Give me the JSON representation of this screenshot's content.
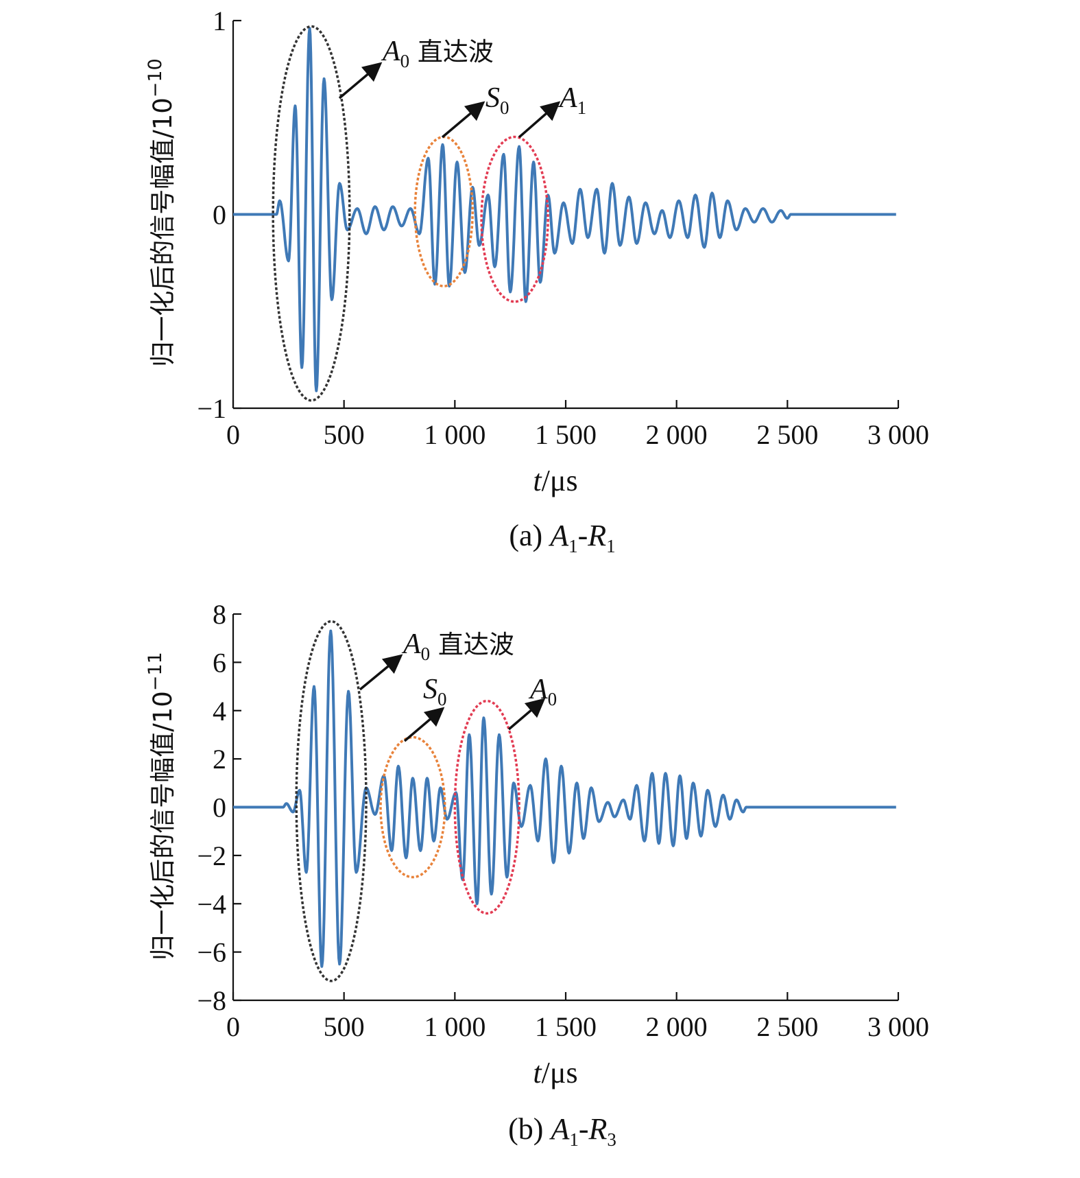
{
  "colors": {
    "signal": "#3f79b6",
    "axis": "#111111",
    "ellipse_a0_direct": "#333333",
    "ellipse_s0": "#e8823a",
    "ellipse_mode": "#e23b52"
  },
  "chart_data": [
    {
      "type": "line",
      "caption": "(a) A1-R1",
      "caption_parts": {
        "prefix": "(a)",
        "a": "A",
        "a_sub": "1",
        "dash": "-",
        "r": "R",
        "r_sub": "1"
      },
      "xlabel": {
        "var": "t",
        "unit": "/μs"
      },
      "ylabel": {
        "text": "归一化后的信号幅值/10",
        "exponent": "−10"
      },
      "xlim": [
        0,
        3000
      ],
      "ylim": [
        -1,
        1
      ],
      "x_ticks": [
        0,
        500,
        1000,
        1500,
        2000,
        2500,
        3000
      ],
      "x_tick_labels": [
        "0",
        "500",
        "1 000",
        "1 500",
        "2 000",
        "2 500",
        "3 000"
      ],
      "y_ticks": [
        -1,
        0,
        1
      ],
      "y_tick_labels": [
        "−1",
        "0",
        "1"
      ],
      "series": [
        {
          "name": "signal",
          "period": 60,
          "end": 2520,
          "peaks": [
            [
              210,
              0.07
            ],
            [
              250,
              -0.24
            ],
            [
              280,
              0.56
            ],
            [
              310,
              -0.79
            ],
            [
              345,
              0.96
            ],
            [
              375,
              -0.91
            ],
            [
              410,
              0.7
            ],
            [
              445,
              -0.44
            ],
            [
              480,
              0.16
            ],
            [
              515,
              -0.08
            ],
            [
              560,
              0.03
            ],
            [
              600,
              -0.1
            ],
            [
              640,
              0.04
            ],
            [
              680,
              -0.08
            ],
            [
              720,
              0.04
            ],
            [
              760,
              -0.06
            ],
            [
              800,
              0.03
            ],
            [
              840,
              -0.1
            ],
            [
              880,
              0.29
            ],
            [
              910,
              -0.36
            ],
            [
              945,
              0.36
            ],
            [
              975,
              -0.37
            ],
            [
              1010,
              0.27
            ],
            [
              1045,
              -0.3
            ],
            [
              1080,
              0.14
            ],
            [
              1110,
              -0.16
            ],
            [
              1150,
              0.1
            ],
            [
              1180,
              -0.27
            ],
            [
              1220,
              0.31
            ],
            [
              1250,
              -0.4
            ],
            [
              1290,
              0.35
            ],
            [
              1320,
              -0.45
            ],
            [
              1355,
              0.27
            ],
            [
              1385,
              -0.35
            ],
            [
              1420,
              0.1
            ],
            [
              1450,
              -0.2
            ],
            [
              1490,
              0.06
            ],
            [
              1530,
              -0.15
            ],
            [
              1565,
              0.13
            ],
            [
              1600,
              -0.12
            ],
            [
              1640,
              0.13
            ],
            [
              1675,
              -0.2
            ],
            [
              1710,
              0.16
            ],
            [
              1745,
              -0.16
            ],
            [
              1785,
              0.09
            ],
            [
              1820,
              -0.15
            ],
            [
              1860,
              0.06
            ],
            [
              1900,
              -0.1
            ],
            [
              1935,
              0.02
            ],
            [
              1970,
              -0.12
            ],
            [
              2010,
              0.07
            ],
            [
              2050,
              -0.12
            ],
            [
              2085,
              0.1
            ],
            [
              2125,
              -0.17
            ],
            [
              2160,
              0.11
            ],
            [
              2195,
              -0.12
            ],
            [
              2230,
              0.07
            ],
            [
              2270,
              -0.08
            ],
            [
              2310,
              0.03
            ],
            [
              2350,
              -0.04
            ],
            [
              2390,
              0.03
            ],
            [
              2430,
              -0.04
            ],
            [
              2470,
              0.02
            ],
            [
              2500,
              -0.02
            ]
          ]
        }
      ],
      "annotations": [
        {
          "label": "A",
          "sub": "0",
          "extra": " 直达波",
          "x_range": [
            180,
            525
          ],
          "y_range": [
            -0.96,
            0.97
          ]
        },
        {
          "label": "S",
          "sub": "0",
          "extra": "",
          "x_range": [
            820,
            1080
          ],
          "y_range": [
            -0.37,
            0.4
          ]
        },
        {
          "label": "A",
          "sub": "1",
          "extra": "",
          "x_range": [
            1120,
            1420
          ],
          "y_range": [
            -0.45,
            0.4
          ]
        }
      ]
    },
    {
      "type": "line",
      "caption": "(b) A1-R3",
      "caption_parts": {
        "prefix": "(b)",
        "a": "A",
        "a_sub": "1",
        "dash": "-",
        "r": "R",
        "r_sub": "3"
      },
      "xlabel": {
        "var": "t",
        "unit": "/μs"
      },
      "ylabel": {
        "text": "归一化后的信号幅值/10",
        "exponent": "−11"
      },
      "xlim": [
        0,
        3000
      ],
      "ylim": [
        -8,
        8
      ],
      "x_ticks": [
        0,
        500,
        1000,
        1500,
        2000,
        2500,
        3000
      ],
      "x_tick_labels": [
        "0",
        "500",
        "1 000",
        "1 500",
        "2 000",
        "2 500",
        "3 000"
      ],
      "y_ticks": [
        -8,
        -6,
        -4,
        -2,
        0,
        2,
        4,
        6,
        8
      ],
      "y_tick_labels": [
        "−8",
        "−6",
        "−4",
        "−2",
        "0",
        "2",
        "4",
        "6",
        "8"
      ],
      "series": [
        {
          "name": "signal",
          "period": 60,
          "end": 2560,
          "peaks": [
            [
              240,
              0.15
            ],
            [
              270,
              -0.2
            ],
            [
              300,
              0.7
            ],
            [
              330,
              -2.7
            ],
            [
              365,
              5.0
            ],
            [
              400,
              -6.6
            ],
            [
              440,
              7.3
            ],
            [
              480,
              -6.5
            ],
            [
              520,
              4.8
            ],
            [
              555,
              -2.7
            ],
            [
              600,
              0.8
            ],
            [
              640,
              -0.3
            ],
            [
              680,
              1.3
            ],
            [
              715,
              -1.8
            ],
            [
              745,
              1.7
            ],
            [
              780,
              -2.1
            ],
            [
              810,
              1.2
            ],
            [
              845,
              -1.8
            ],
            [
              875,
              1.2
            ],
            [
              905,
              -1.4
            ],
            [
              935,
              0.8
            ],
            [
              965,
              -0.5
            ],
            [
              1005,
              0.6
            ],
            [
              1035,
              -3.0
            ],
            [
              1065,
              3.0
            ],
            [
              1100,
              -4.0
            ],
            [
              1130,
              3.7
            ],
            [
              1165,
              -3.6
            ],
            [
              1200,
              3.0
            ],
            [
              1235,
              -2.9
            ],
            [
              1265,
              1.0
            ],
            [
              1300,
              -0.8
            ],
            [
              1340,
              0.9
            ],
            [
              1375,
              -1.4
            ],
            [
              1410,
              2.0
            ],
            [
              1445,
              -2.3
            ],
            [
              1480,
              1.7
            ],
            [
              1515,
              -1.9
            ],
            [
              1550,
              1.0
            ],
            [
              1580,
              -1.3
            ],
            [
              1615,
              0.8
            ],
            [
              1650,
              -0.6
            ],
            [
              1690,
              0.2
            ],
            [
              1720,
              -0.4
            ],
            [
              1760,
              0.3
            ],
            [
              1790,
              -0.5
            ],
            [
              1820,
              0.9
            ],
            [
              1855,
              -1.4
            ],
            [
              1890,
              1.4
            ],
            [
              1920,
              -1.5
            ],
            [
              1950,
              1.4
            ],
            [
              1985,
              -1.6
            ],
            [
              2015,
              1.3
            ],
            [
              2045,
              -1.3
            ],
            [
              2075,
              1.0
            ],
            [
              2110,
              -1.2
            ],
            [
              2140,
              0.7
            ],
            [
              2175,
              -0.8
            ],
            [
              2210,
              0.5
            ],
            [
              2240,
              -0.5
            ],
            [
              2270,
              0.3
            ],
            [
              2300,
              -0.2
            ]
          ]
        }
      ],
      "annotations": [
        {
          "label": "A",
          "sub": "0",
          "extra": " 直达波",
          "x_range": [
            285,
            600
          ],
          "y_range": [
            -7.2,
            7.7
          ]
        },
        {
          "label": "S",
          "sub": "0",
          "extra": "",
          "x_range": [
            665,
            955
          ],
          "y_range": [
            -2.9,
            2.9
          ]
        },
        {
          "label": "A",
          "sub": "0",
          "extra": "",
          "x_range": [
            1000,
            1290
          ],
          "y_range": [
            -4.4,
            4.4
          ]
        }
      ]
    }
  ]
}
